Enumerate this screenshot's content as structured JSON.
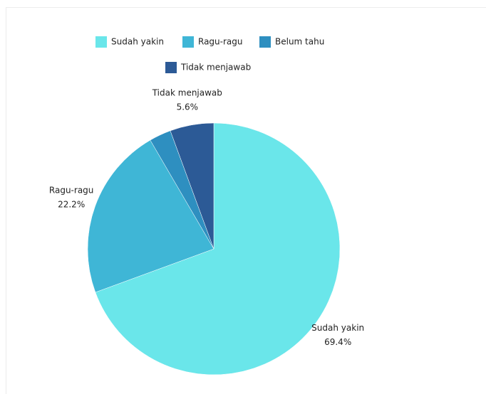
{
  "chart_data": {
    "type": "pie",
    "categories": [
      "Sudah yakin",
      "Ragu-ragu",
      "Belum tahu",
      "Tidak menjawab"
    ],
    "values": [
      69.4,
      22.2,
      2.8,
      5.6
    ],
    "value_labels": [
      "69.4%",
      "22.2%",
      null,
      "5.6%"
    ],
    "colors": [
      "#6ae6ea",
      "#3fb6d6",
      "#2e8fc0",
      "#2c5a96"
    ],
    "legend": "top"
  }
}
